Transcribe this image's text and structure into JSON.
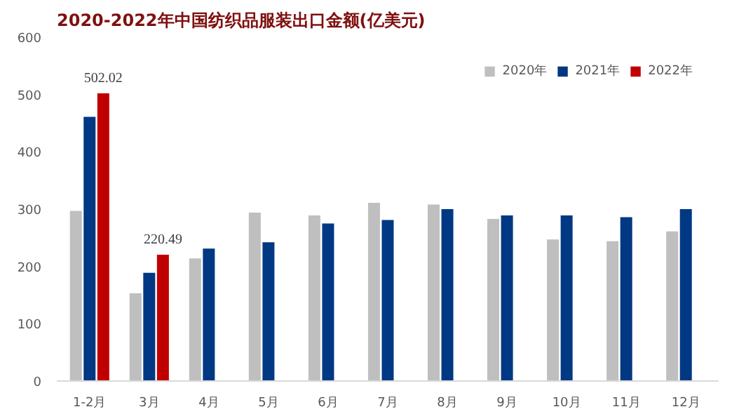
{
  "chart_data": {
    "type": "bar",
    "title": "2020-2022年中国纺织品服装出口金额(亿美元)",
    "categories": [
      "1-2月",
      "3月",
      "4月",
      "5月",
      "6月",
      "7月",
      "8月",
      "9月",
      "10月",
      "11月",
      "12月"
    ],
    "series": [
      {
        "name": "2020年",
        "color": "#bfbfbf",
        "values": [
          297,
          153,
          214,
          294,
          289,
          311,
          308,
          283,
          247,
          244,
          261
        ]
      },
      {
        "name": "2021年",
        "color": "#003883",
        "values": [
          461,
          189,
          231,
          242,
          275,
          281,
          300,
          289,
          289,
          286,
          300
        ]
      },
      {
        "name": "2022年",
        "color": "#c00000",
        "values": [
          502.02,
          220.49,
          null,
          null,
          null,
          null,
          null,
          null,
          null,
          null,
          null
        ],
        "value_labels": [
          "502.02",
          "220.49",
          null,
          null,
          null,
          null,
          null,
          null,
          null,
          null,
          null
        ]
      }
    ],
    "ylim": [
      0,
      600
    ],
    "yticks": [
      0,
      100,
      200,
      300,
      400,
      500,
      600
    ],
    "grid": false,
    "legend": "top right"
  }
}
